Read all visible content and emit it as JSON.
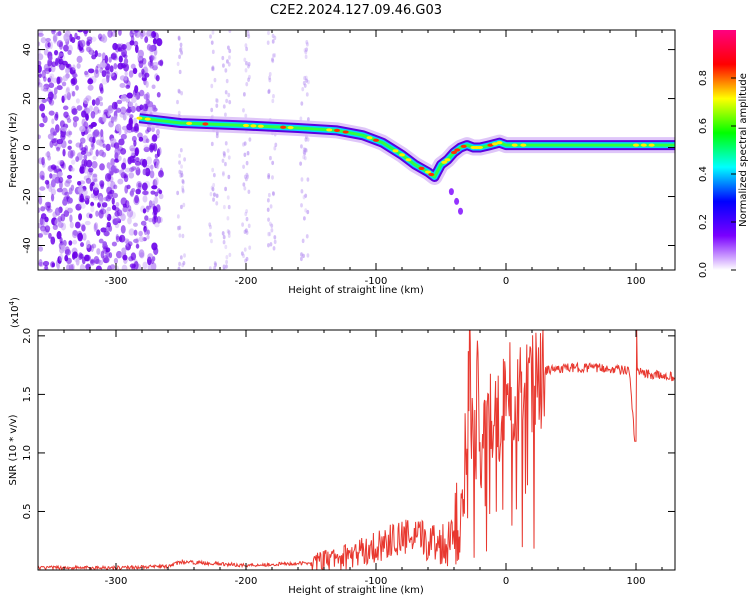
{
  "title": "C2E2.2024.127.09.46.G03",
  "chart_data": [
    {
      "type": "heatmap",
      "xlabel": "Height of straight line (km)",
      "ylabel": "Frequency (Hz)",
      "xlim": [
        -360,
        130
      ],
      "ylim": [
        -50,
        48
      ],
      "xticks": [
        -300,
        -200,
        -100,
        0,
        100
      ],
      "yticks": [
        -40,
        -20,
        0,
        20,
        40
      ],
      "colorbar": {
        "label": "Normalized spectral amplitude",
        "range": [
          0,
          1
        ],
        "ticks": [
          "0.0",
          "0.2",
          "0.4",
          "0.6",
          "0.8"
        ],
        "colors": [
          "#ffffff",
          "#7a00ff",
          "#0000ff",
          "#00ffff",
          "#00ff00",
          "#ffff00",
          "#ff0000",
          "#ff0080"
        ]
      },
      "ridge": {
        "x": [
          -282,
          -250,
          -200,
          -160,
          -130,
          -110,
          -95,
          -80,
          -70,
          -60,
          -55,
          -50,
          -45,
          -40,
          -35,
          -30,
          -25,
          -20,
          -12,
          -5,
          0,
          20,
          60,
          100,
          130
        ],
        "y": [
          12,
          10,
          9,
          8,
          7,
          5,
          2,
          -3,
          -7,
          -10,
          -12,
          -7,
          -5,
          -2,
          0,
          1,
          0,
          0,
          1,
          2,
          1,
          1,
          1,
          1,
          1
        ]
      },
      "noise_region_x": [
        -360,
        -265
      ]
    },
    {
      "type": "line",
      "xlabel": "Height of straight line (km)",
      "ylabel": "SNR (10 * v/v)",
      "scale_note": "(x10^4)",
      "xlim": [
        -360,
        130
      ],
      "ylim": [
        0,
        2.05
      ],
      "xticks": [
        -300,
        -200,
        -100,
        0,
        100
      ],
      "yticks": [
        0.5,
        1.0,
        1.5,
        2.0
      ],
      "ytick_labels": [
        "0.5",
        "1.0",
        "1.5",
        "2.0"
      ],
      "line_color": "#e8382f",
      "series": [
        {
          "x": [
            -360,
            -300,
            -260,
            -250,
            -200,
            -150,
            -120,
            -100,
            -80,
            -60,
            -45,
            -40,
            -35,
            -30,
            -28,
            -25,
            -22,
            -20,
            -15,
            -10,
            -5,
            0,
            10,
            20,
            30,
            40,
            60,
            80,
            95,
            99,
            100,
            101,
            105,
            110,
            130
          ],
          "values": [
            0.02,
            0.02,
            0.03,
            0.07,
            0.04,
            0.06,
            0.12,
            0.2,
            0.28,
            0.25,
            0.22,
            0.45,
            0.5,
            1.1,
            1.8,
            0.9,
            1.6,
            1.1,
            1.4,
            1.3,
            1.35,
            1.5,
            1.5,
            1.55,
            1.7,
            1.72,
            1.73,
            1.72,
            1.7,
            1.1,
            2.05,
            1.7,
            1.68,
            1.67,
            1.65
          ]
        }
      ]
    }
  ]
}
